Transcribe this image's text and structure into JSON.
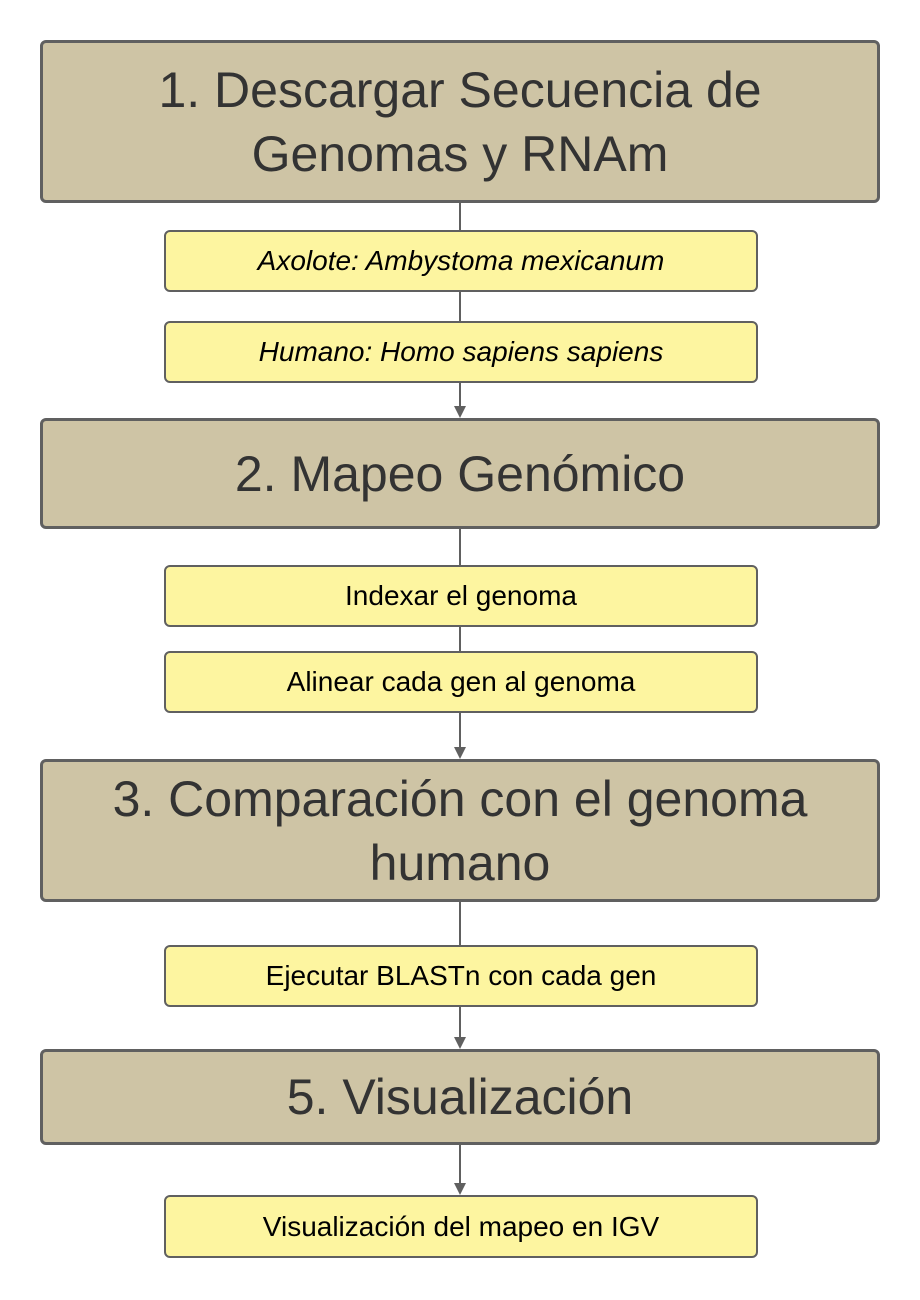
{
  "colors": {
    "step_fill": "#cec4a5",
    "substep_fill": "#fdf5a0",
    "border": "#606060",
    "connector": "#606060"
  },
  "steps": [
    {
      "title": "1. Descargar Secuencia de Genomas y RNAm",
      "substeps": [
        {
          "label": "Axolote: Ambystoma mexicanum"
        },
        {
          "label": "Humano: Homo sapiens sapiens"
        }
      ]
    },
    {
      "title": "2. Mapeo Genómico",
      "substeps": [
        {
          "label": "Indexar el genoma"
        },
        {
          "label": "Alinear cada gen al genoma"
        }
      ]
    },
    {
      "title": "3. Comparación con el genoma humano",
      "substeps": [
        {
          "label": "Ejecutar BLASTn con cada gen"
        }
      ]
    },
    {
      "title": "5. Visualización",
      "substeps": [
        {
          "label": "Visualización del mapeo en IGV"
        }
      ]
    }
  ]
}
